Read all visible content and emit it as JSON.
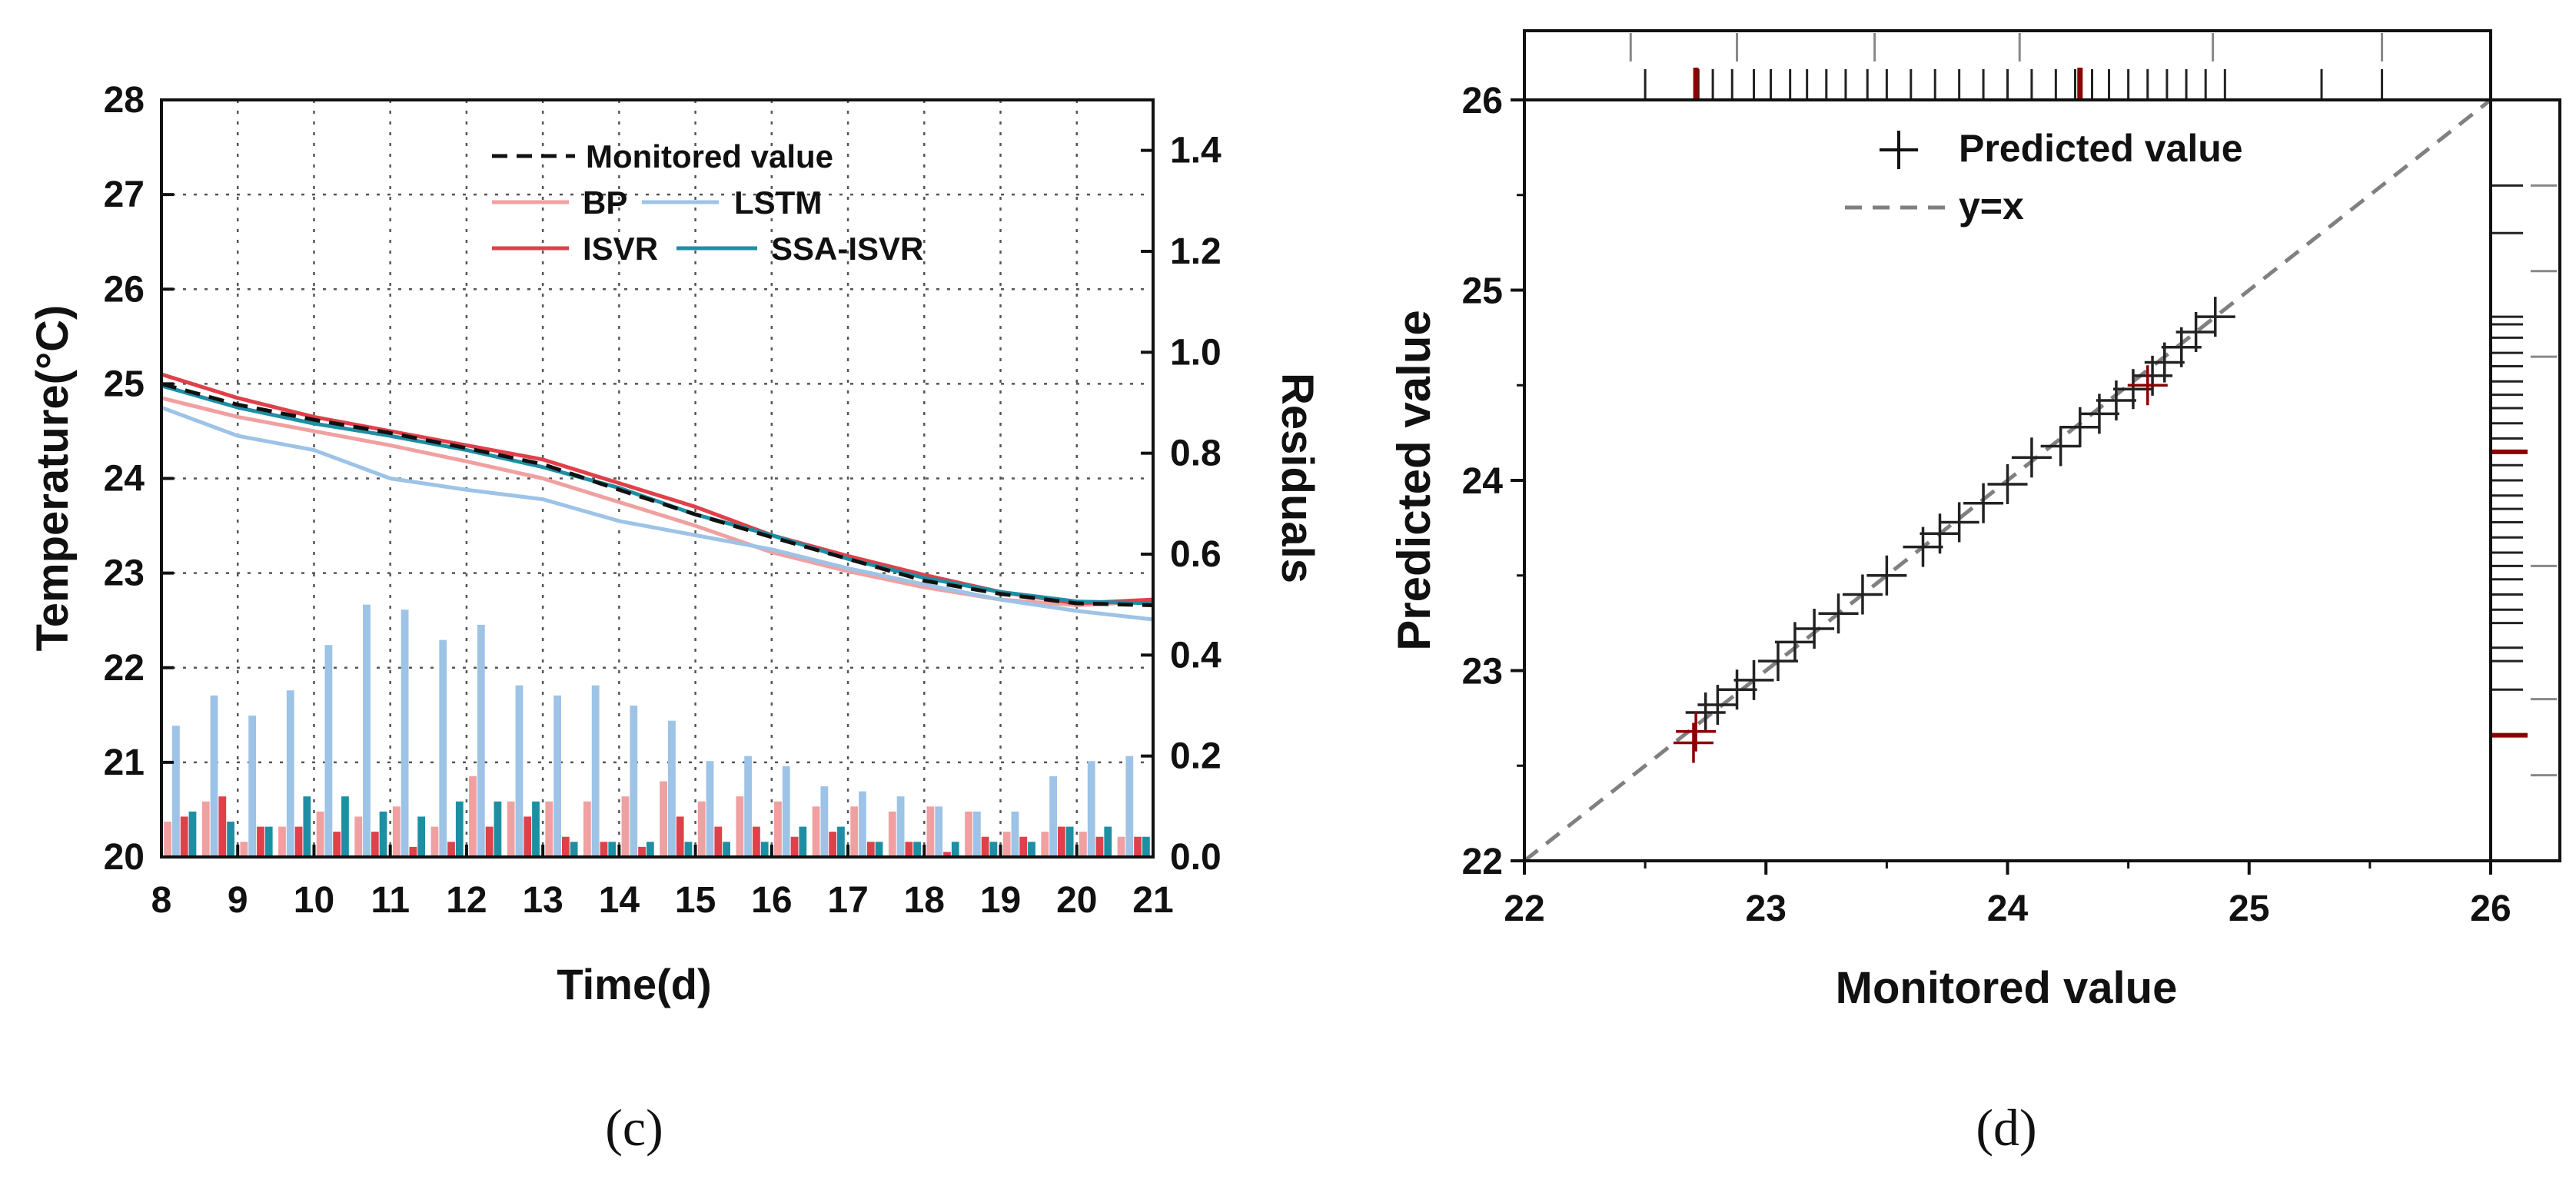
{
  "colors": {
    "bp": "#f0a0a0",
    "lstm": "#9dc3e6",
    "isvr": "#e0404a",
    "ssa": "#1e8fa3",
    "monitored": "#111111",
    "pred_black": "#222222",
    "pred_red": "#8b0000",
    "yx": "#808080"
  },
  "chart_data": [
    {
      "type": "line+bar",
      "panel_label": "(c)",
      "xlabel": "Time(d)",
      "ylabel_left": "Temperature(°C)",
      "ylabel_right": "Residuals",
      "xlim": [
        8,
        21
      ],
      "ylim_left": [
        20,
        28
      ],
      "ylim_right": [
        0,
        1.5
      ],
      "x_ticks": [
        "8",
        "9",
        "10",
        "11",
        "12",
        "13",
        "14",
        "15",
        "16",
        "17",
        "18",
        "19",
        "20",
        "21"
      ],
      "y_left_ticks": [
        "20",
        "21",
        "22",
        "23",
        "24",
        "25",
        "26",
        "27",
        "28"
      ],
      "y_right_ticks": [
        "0.0",
        "0.2",
        "0.4",
        "0.6",
        "0.8",
        "1.0",
        "1.2",
        "1.4"
      ],
      "legend": {
        "monitored": "Monitored value",
        "bp": "BP",
        "lstm": "LSTM",
        "isvr": "ISVR",
        "ssa": "SSA-ISVR"
      },
      "series": [
        {
          "name": "Monitored value",
          "x": [
            8,
            9,
            10,
            11,
            12,
            13,
            14,
            15,
            16,
            17,
            18,
            19,
            20,
            21
          ],
          "y": [
            25.0,
            24.78,
            24.62,
            24.48,
            24.32,
            24.15,
            23.88,
            23.62,
            23.38,
            23.15,
            22.92,
            22.78,
            22.68,
            22.66
          ]
        },
        {
          "name": "BP",
          "x": [
            8,
            9,
            10,
            11,
            12,
            13,
            14,
            15,
            16,
            17,
            18,
            19,
            20,
            21
          ],
          "y": [
            24.85,
            24.65,
            24.5,
            24.35,
            24.18,
            24.0,
            23.75,
            23.5,
            23.22,
            23.02,
            22.85,
            22.72,
            22.66,
            22.7
          ]
        },
        {
          "name": "LSTM",
          "x": [
            8,
            9,
            10,
            11,
            12,
            13,
            14,
            15,
            16,
            17,
            18,
            19,
            20,
            21
          ],
          "y": [
            24.75,
            24.45,
            24.3,
            24.0,
            23.88,
            23.78,
            23.55,
            23.4,
            23.25,
            23.05,
            22.88,
            22.72,
            22.6,
            22.51
          ]
        },
        {
          "name": "ISVR",
          "x": [
            8,
            9,
            10,
            11,
            12,
            13,
            14,
            15,
            16,
            17,
            18,
            19,
            20,
            21
          ],
          "y": [
            25.1,
            24.85,
            24.65,
            24.5,
            24.35,
            24.2,
            23.95,
            23.7,
            23.4,
            23.18,
            22.98,
            22.8,
            22.68,
            22.72
          ]
        },
        {
          "name": "SSA-ISVR",
          "x": [
            8,
            9,
            10,
            11,
            12,
            13,
            14,
            15,
            16,
            17,
            18,
            19,
            20,
            21
          ],
          "y": [
            24.98,
            24.75,
            24.58,
            24.45,
            24.3,
            24.12,
            23.9,
            23.62,
            23.4,
            23.15,
            22.95,
            22.8,
            22.7,
            22.68
          ]
        }
      ],
      "residuals": {
        "x": [
          8.25,
          8.75,
          9.25,
          9.75,
          10.25,
          10.75,
          11.25,
          11.75,
          12.25,
          12.75,
          13.25,
          13.75,
          14.25,
          14.75,
          15.25,
          15.75,
          16.25,
          16.75,
          17.25,
          17.75,
          18.25,
          18.75,
          19.25,
          19.75,
          20.25,
          20.75
        ],
        "BP": [
          0.07,
          0.11,
          0.03,
          0.06,
          0.09,
          0.08,
          0.1,
          0.06,
          0.16,
          0.11,
          0.11,
          0.11,
          0.12,
          0.15,
          0.11,
          0.12,
          0.11,
          0.1,
          0.1,
          0.09,
          0.1,
          0.09,
          0.05,
          0.05,
          0.05,
          0.04
        ],
        "LSTM": [
          0.26,
          0.32,
          0.28,
          0.33,
          0.42,
          0.5,
          0.49,
          0.43,
          0.46,
          0.34,
          0.32,
          0.34,
          0.3,
          0.27,
          0.19,
          0.2,
          0.18,
          0.14,
          0.13,
          0.12,
          0.1,
          0.09,
          0.09,
          0.16,
          0.19,
          0.2
        ],
        "ISVR": [
          0.08,
          0.12,
          0.06,
          0.06,
          0.05,
          0.05,
          0.02,
          0.03,
          0.06,
          0.08,
          0.04,
          0.03,
          0.02,
          0.08,
          0.06,
          0.06,
          0.04,
          0.05,
          0.03,
          0.03,
          0.01,
          0.04,
          0.04,
          0.06,
          0.04,
          0.04
        ],
        "SSA-ISVR": [
          0.09,
          0.07,
          0.06,
          0.12,
          0.12,
          0.09,
          0.08,
          0.11,
          0.11,
          0.11,
          0.03,
          0.03,
          0.03,
          0.03,
          0.03,
          0.03,
          0.06,
          0.06,
          0.03,
          0.03,
          0.03,
          0.03,
          0.03,
          0.06,
          0.06,
          0.04
        ]
      }
    },
    {
      "type": "scatter",
      "panel_label": "(d)",
      "xlabel": "Monitored value",
      "ylabel": "Predicted value",
      "xlim": [
        22,
        26
      ],
      "ylim": [
        22,
        26
      ],
      "x_ticks": [
        "22",
        "23",
        "24",
        "25",
        "26"
      ],
      "y_ticks": [
        "22",
        "23",
        "24",
        "25",
        "26"
      ],
      "legend": {
        "points": "Predicted value",
        "line": "y=x"
      },
      "points_black": {
        "x": [
          22.75,
          22.8,
          22.88,
          22.95,
          23.05,
          23.12,
          23.2,
          23.3,
          23.4,
          23.5,
          23.65,
          23.72,
          23.8,
          23.9,
          24.0,
          24.1,
          24.22,
          24.3,
          24.38,
          24.45,
          24.52,
          24.6,
          24.65,
          24.72,
          24.78,
          24.86
        ],
        "y": [
          22.78,
          22.82,
          22.9,
          22.95,
          23.05,
          23.15,
          23.22,
          23.3,
          23.4,
          23.5,
          23.65,
          23.72,
          23.78,
          23.88,
          23.98,
          24.12,
          24.18,
          24.28,
          24.35,
          24.42,
          24.48,
          24.55,
          24.62,
          24.7,
          24.78,
          24.86
        ]
      },
      "points_red": {
        "x": [
          22.7,
          22.71,
          24.58
        ],
        "y": [
          22.62,
          22.68,
          24.5
        ]
      },
      "top_rug": [
        22.5,
        22.72,
        22.78,
        22.86,
        22.95,
        23.02,
        23.1,
        23.17,
        23.25,
        23.33,
        23.42,
        23.5,
        23.6,
        23.7,
        23.8,
        23.9,
        24.0,
        24.1,
        24.2,
        24.28,
        24.35,
        24.42,
        24.5,
        24.58,
        24.66,
        24.74,
        24.82,
        24.9,
        25.3,
        25.55
      ],
      "top_rug_red": [
        22.71,
        24.3
      ],
      "right_rug": [
        22.9,
        23.05,
        23.12,
        23.25,
        23.32,
        23.4,
        23.48,
        23.55,
        23.62,
        23.7,
        23.78,
        23.85,
        23.92,
        24.0,
        24.08,
        24.15,
        24.22,
        24.3,
        24.38,
        24.45,
        24.52,
        24.6,
        24.67,
        24.75,
        24.82,
        24.86,
        25.3,
        25.55
      ],
      "right_rug_red": [
        22.66,
        24.15
      ]
    }
  ]
}
